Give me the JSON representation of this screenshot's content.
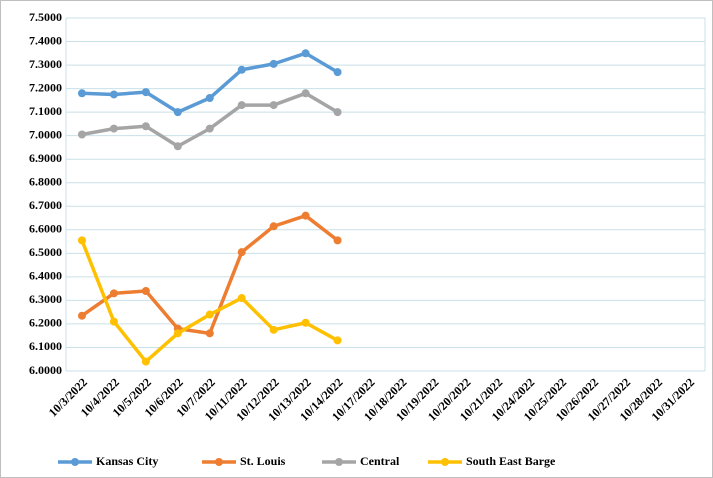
{
  "chart_data": {
    "type": "line",
    "categories": [
      "10/3/2022",
      "10/4/2022",
      "10/5/2022",
      "10/6/2022",
      "10/7/2022",
      "10/11/2022",
      "10/12/2022",
      "10/13/2022",
      "10/14/2022",
      "10/17/2022",
      "10/18/2022",
      "10/19/2022",
      "10/20/2022",
      "10/21/2022",
      "10/24/2022",
      "10/25/2022",
      "10/26/2022",
      "10/27/2022",
      "10/28/2022",
      "10/31/2022"
    ],
    "series": [
      {
        "name": "Kansas City",
        "color": "#5b9bd5",
        "values": [
          7.18,
          7.175,
          7.185,
          7.1,
          7.16,
          7.28,
          7.305,
          7.35,
          7.27,
          null,
          null,
          null,
          null,
          null,
          null,
          null,
          null,
          null,
          null,
          null
        ]
      },
      {
        "name": "St. Louis",
        "color": "#ed7d31",
        "values": [
          6.235,
          6.33,
          6.34,
          6.18,
          6.16,
          6.505,
          6.615,
          6.66,
          6.555,
          null,
          null,
          null,
          null,
          null,
          null,
          null,
          null,
          null,
          null,
          null
        ]
      },
      {
        "name": "Central",
        "color": "#a5a5a5",
        "values": [
          7.005,
          7.03,
          7.04,
          6.955,
          7.03,
          7.13,
          7.13,
          7.18,
          7.1,
          null,
          null,
          null,
          null,
          null,
          null,
          null,
          null,
          null,
          null,
          null
        ]
      },
      {
        "name": "South East Barge",
        "color": "#ffc000",
        "values": [
          6.555,
          6.21,
          6.04,
          6.16,
          6.24,
          6.31,
          6.175,
          6.205,
          6.13,
          null,
          null,
          null,
          null,
          null,
          null,
          null,
          null,
          null,
          null,
          null
        ]
      }
    ],
    "ylim": [
      6.0,
      7.5
    ],
    "yticks": [
      {
        "value": 6.0,
        "label": "6.0000"
      },
      {
        "value": 6.1,
        "label": "6.1000"
      },
      {
        "value": 6.2,
        "label": "6.2000"
      },
      {
        "value": 6.3,
        "label": "6.3000"
      },
      {
        "value": 6.4,
        "label": "6.4000"
      },
      {
        "value": 6.5,
        "label": "6.5000"
      },
      {
        "value": 6.6,
        "label": "6.6000"
      },
      {
        "value": 6.7,
        "label": "6.7000"
      },
      {
        "value": 6.8,
        "label": "6.8000"
      },
      {
        "value": 6.9,
        "label": "6.9000"
      },
      {
        "value": 7.0,
        "label": "7.0000"
      },
      {
        "value": 7.1,
        "label": "7.1000"
      },
      {
        "value": 7.2,
        "label": "7.2000"
      },
      {
        "value": 7.3,
        "label": "7.3000"
      },
      {
        "value": 7.4,
        "label": "7.4000"
      },
      {
        "value": 7.5,
        "label": "7.5000"
      }
    ],
    "grid": true,
    "legend": "bottom"
  }
}
